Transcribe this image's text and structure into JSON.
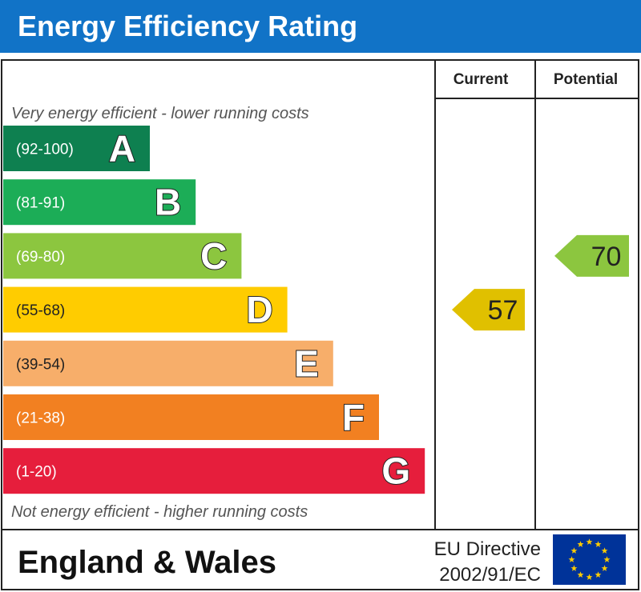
{
  "header": {
    "title": "Energy Efficiency Rating"
  },
  "columns": {
    "current": "Current",
    "potential": "Potential"
  },
  "notes": {
    "top": "Very energy efficient - lower running costs",
    "bottom": "Not energy efficient - higher running costs"
  },
  "footer": {
    "region": "England & Wales",
    "directive_line1": "EU Directive",
    "directive_line2": "2002/91/EC",
    "flag_icon": "eu-flag-icon"
  },
  "chart_data": {
    "type": "bar",
    "bands": [
      {
        "range": "(92-100)",
        "letter": "A",
        "color": "#0e8050"
      },
      {
        "range": "(81-91)",
        "letter": "B",
        "color": "#1cad57"
      },
      {
        "range": "(69-80)",
        "letter": "C",
        "color": "#8cc63f"
      },
      {
        "range": "(55-68)",
        "letter": "D",
        "color": "#ffcc00"
      },
      {
        "range": "(39-54)",
        "letter": "E",
        "color": "#f7ae6a"
      },
      {
        "range": "(21-38)",
        "letter": "F",
        "color": "#f28021"
      },
      {
        "range": "(1-20)",
        "letter": "G",
        "color": "#e61e3c"
      }
    ],
    "current": {
      "value": 57,
      "band": "D",
      "color": "#e0c000"
    },
    "potential": {
      "value": 70,
      "band": "C",
      "color": "#8cc63f"
    }
  }
}
